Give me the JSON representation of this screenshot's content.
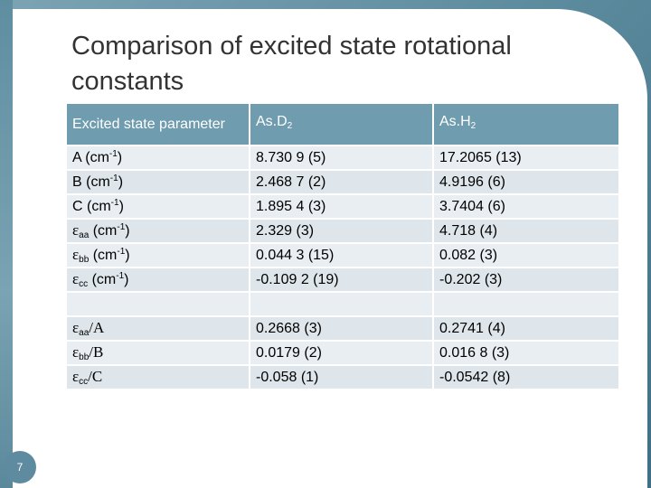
{
  "slide": {
    "title": "Comparison of excited state rotational constants",
    "number": "7"
  },
  "table": {
    "headers": [
      "Excited state parameter",
      "As.D",
      "2",
      "As.H",
      "2"
    ],
    "rows": [
      {
        "p_base": "A (cm",
        "p_sup": "-1",
        "p_tail": ")",
        "d2": "8.730 9 (5)",
        "h2": "17.2065 (13)"
      },
      {
        "p_base": "B (cm",
        "p_sup": "-1",
        "p_tail": ")",
        "d2": "2.468 7 (2)",
        "h2": "4.9196 (6)"
      },
      {
        "p_base": "C (cm",
        "p_sup": "-1",
        "p_tail": ")",
        "d2": "1.895 4 (3)",
        "h2": "3.7404 (6)"
      },
      {
        "p_greek": "ε",
        "p_sub": "aa",
        "p_base": " (cm",
        "p_sup": "-1",
        "p_tail": ")",
        "d2": "2.329 (3)",
        "h2": "4.718 (4)"
      },
      {
        "p_greek": "ε",
        "p_sub": "bb",
        "p_base": " (cm",
        "p_sup": "-1",
        "p_tail": ")",
        "d2": "0.044 3 (15)",
        "h2": "0.082 (3)"
      },
      {
        "p_greek": "ε",
        "p_sub": "cc",
        "p_base": " (cm",
        "p_sup": "-1",
        "p_tail": ")",
        "d2": "-0.109 2 (19)",
        "h2": "-0.202 (3)"
      },
      {
        "p_greek": "ε",
        "p_sub": "aa",
        "p_ratio": "/A",
        "d2": "0.2668 (3)",
        "h2": "0.2741 (4)"
      },
      {
        "p_greek": "ε",
        "p_sub": "bb",
        "p_ratio": "/B",
        "d2": "0.0179 (2)",
        "h2": "0.016 8 (3)"
      },
      {
        "p_greek": "ε",
        "p_sub": "cc",
        "p_ratio": "/C",
        "d2": "-0.058 (1)",
        "h2": "-0.0542 (8)"
      }
    ]
  }
}
